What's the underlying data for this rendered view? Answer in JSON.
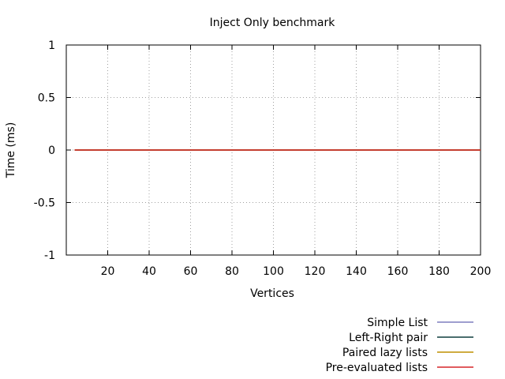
{
  "chart_data": {
    "type": "line",
    "title": "Inject Only benchmark",
    "xlabel": "Vertices",
    "ylabel": "Time (ms)",
    "xlim": [
      0,
      200
    ],
    "ylim": [
      -1,
      1
    ],
    "xticks": [
      20,
      40,
      60,
      80,
      100,
      120,
      140,
      160,
      180,
      200
    ],
    "yticks": [
      1,
      0.5,
      0,
      -0.5,
      -1
    ],
    "ytick_labels": [
      "1",
      "0.5",
      "0",
      "-0.5",
      "-1"
    ],
    "grid": true,
    "legend_position": "bottom-right, outside plot",
    "series": [
      {
        "name": "Simple List",
        "color": "#7f7fbf",
        "x": [
          4,
          200
        ],
        "y": [
          0,
          0
        ]
      },
      {
        "name": "Left-Right pair",
        "color": "#0f3f3f",
        "x": [
          4,
          200
        ],
        "y": [
          0,
          0
        ]
      },
      {
        "name": "Paired lazy lists",
        "color": "#bf8f00",
        "x": [
          4,
          200
        ],
        "y": [
          0,
          0
        ]
      },
      {
        "name": "Pre-evaluated lists",
        "color": "#d62728",
        "x": [
          4,
          200
        ],
        "y": [
          0,
          0
        ]
      }
    ]
  }
}
